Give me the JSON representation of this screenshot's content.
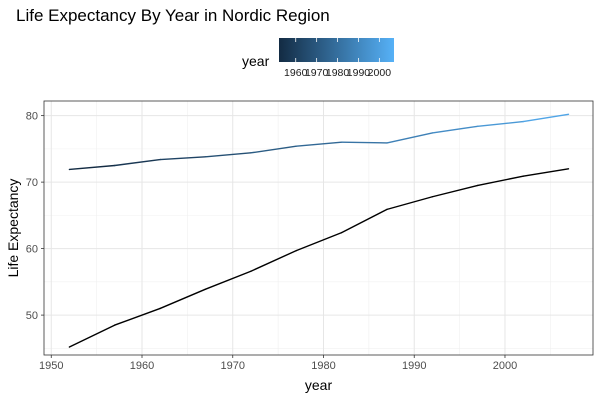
{
  "chart_data": {
    "type": "line",
    "title": "Life Expectancy By Year in Nordic Region",
    "xlabel": "year",
    "ylabel": "Life Expectancy",
    "xlim": [
      1949.2,
      2009.7
    ],
    "ylim": [
      44,
      82.2
    ],
    "xticks": [
      1950,
      1960,
      1970,
      1980,
      1990,
      2000
    ],
    "yticks": [
      50,
      60,
      70,
      80
    ],
    "grid": true,
    "legend": {
      "title": "year",
      "type": "colorbar",
      "placement": "top",
      "colors": [
        "#132B43",
        "#56B1F7"
      ],
      "range": [
        1952,
        2007
      ],
      "breaks": [
        1960,
        1970,
        1980,
        1990,
        2000
      ]
    },
    "x": [
      1952,
      1957,
      1962,
      1967,
      1972,
      1977,
      1982,
      1987,
      1992,
      1997,
      2002,
      2007
    ],
    "series": [
      {
        "values": [
          71.9,
          72.5,
          73.4,
          73.8,
          74.4,
          75.4,
          76.0,
          75.9,
          77.4,
          78.4,
          79.1,
          80.2
        ],
        "color": "gradient"
      },
      {
        "values": [
          45.2,
          48.5,
          51.0,
          53.9,
          56.6,
          59.7,
          62.4,
          65.9,
          67.8,
          69.5,
          70.9,
          72.0
        ],
        "color": "#000000"
      }
    ]
  }
}
